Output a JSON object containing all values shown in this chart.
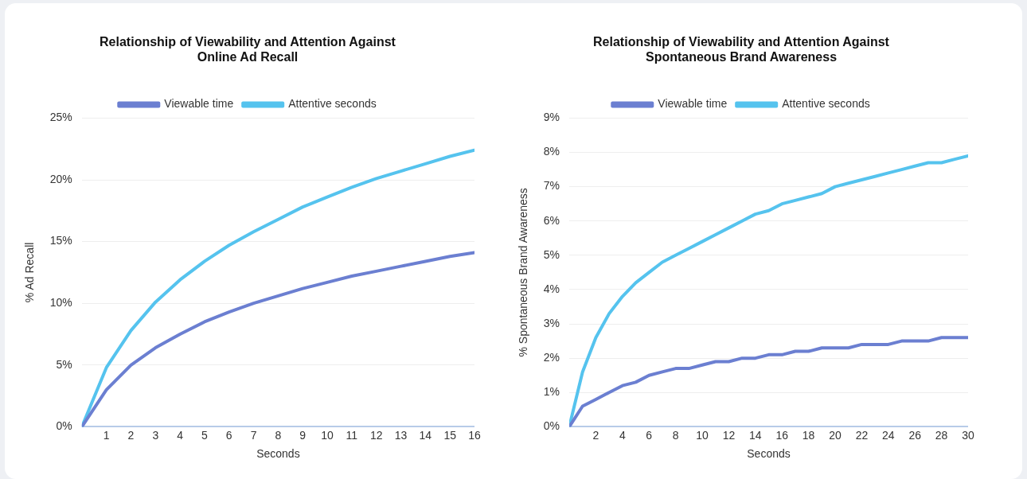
{
  "chart_data": [
    {
      "type": "line",
      "title": "Relationship of Viewability and Attention Against Online Ad Recall",
      "xlabel": "Seconds",
      "ylabel": "% Ad Recall",
      "x": [
        0,
        1,
        2,
        3,
        4,
        5,
        6,
        7,
        8,
        9,
        10,
        11,
        12,
        13,
        14,
        15,
        16
      ],
      "xlim": [
        0,
        16
      ],
      "xticks": [
        1,
        2,
        3,
        4,
        5,
        6,
        7,
        8,
        9,
        10,
        11,
        12,
        13,
        14,
        15,
        16
      ],
      "ylim": [
        0,
        25
      ],
      "yticks": [
        {
          "value": 0,
          "label": "0%"
        },
        {
          "value": 5,
          "label": "5%"
        },
        {
          "value": 10,
          "label": "10%"
        },
        {
          "value": 15,
          "label": "15%"
        },
        {
          "value": 20,
          "label": "20%"
        },
        {
          "value": 25,
          "label": "25%"
        }
      ],
      "grid": "y",
      "legend": "top",
      "marker": "none",
      "line_style": "solid",
      "series": [
        {
          "name": "Viewable time",
          "color": "#6b7fd1",
          "values": [
            0,
            3.0,
            5.0,
            6.4,
            7.5,
            8.5,
            9.3,
            10.0,
            10.6,
            11.2,
            11.7,
            12.2,
            12.6,
            13.0,
            13.4,
            13.8,
            14.1
          ]
        },
        {
          "name": "Attentive seconds",
          "color": "#55c3ee",
          "values": [
            0,
            4.8,
            7.8,
            10.1,
            11.9,
            13.4,
            14.7,
            15.8,
            16.8,
            17.8,
            18.6,
            19.4,
            20.1,
            20.7,
            21.3,
            21.9,
            22.4
          ]
        }
      ]
    },
    {
      "type": "line",
      "title": "Relationship of Viewability and Attention Against Spontaneous Brand Awareness",
      "xlabel": "Seconds",
      "ylabel": "% Spontaneous Brand Awareness",
      "x": [
        0,
        1,
        2,
        3,
        4,
        5,
        6,
        7,
        8,
        9,
        10,
        11,
        12,
        13,
        14,
        15,
        16,
        17,
        18,
        19,
        20,
        21,
        22,
        23,
        24,
        25,
        26,
        27,
        28,
        29,
        30
      ],
      "xlim": [
        0,
        30
      ],
      "xticks": [
        2,
        4,
        6,
        8,
        10,
        12,
        14,
        16,
        18,
        20,
        22,
        24,
        26,
        28,
        30
      ],
      "ylim": [
        0,
        9
      ],
      "yticks": [
        {
          "value": 0,
          "label": "0%"
        },
        {
          "value": 1,
          "label": "1%"
        },
        {
          "value": 2,
          "label": "2%"
        },
        {
          "value": 3,
          "label": "3%"
        },
        {
          "value": 4,
          "label": "4%"
        },
        {
          "value": 5,
          "label": "5%"
        },
        {
          "value": 6,
          "label": "6%"
        },
        {
          "value": 7,
          "label": "7%"
        },
        {
          "value": 8,
          "label": "8%"
        },
        {
          "value": 9,
          "label": "9%"
        }
      ],
      "grid": "y",
      "legend": "top",
      "marker": "none",
      "line_style": "solid",
      "series": [
        {
          "name": "Viewable time",
          "color": "#6b7fd1",
          "values": [
            0,
            0.6,
            0.8,
            1.0,
            1.2,
            1.3,
            1.5,
            1.6,
            1.7,
            1.7,
            1.8,
            1.9,
            1.9,
            2.0,
            2.0,
            2.1,
            2.1,
            2.2,
            2.2,
            2.3,
            2.3,
            2.3,
            2.4,
            2.4,
            2.4,
            2.5,
            2.5,
            2.5,
            2.6,
            2.6,
            2.6
          ]
        },
        {
          "name": "Attentive seconds",
          "color": "#55c3ee",
          "values": [
            0,
            1.6,
            2.6,
            3.3,
            3.8,
            4.2,
            4.5,
            4.8,
            5.0,
            5.2,
            5.4,
            5.6,
            5.8,
            6.0,
            6.2,
            6.3,
            6.5,
            6.6,
            6.7,
            6.8,
            7.0,
            7.1,
            7.2,
            7.3,
            7.4,
            7.5,
            7.6,
            7.7,
            7.7,
            7.8,
            7.9
          ]
        }
      ]
    }
  ]
}
